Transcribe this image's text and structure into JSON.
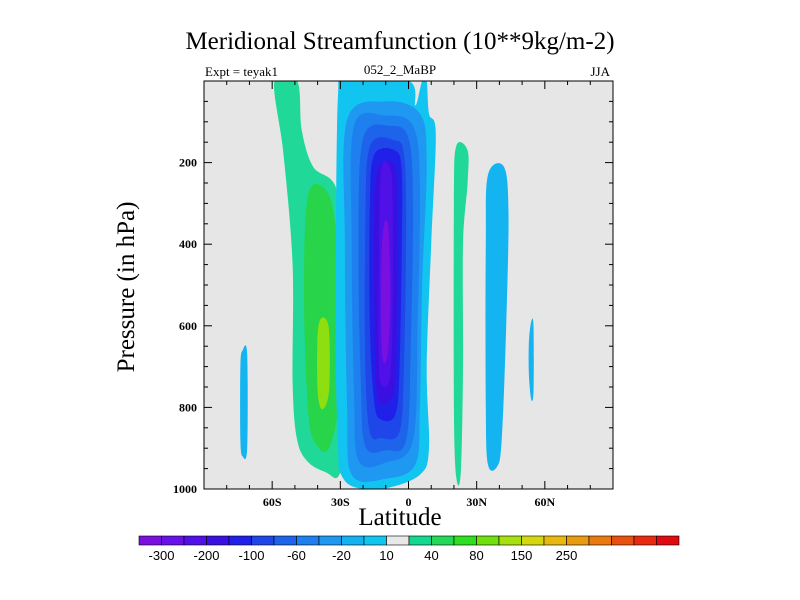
{
  "chart_data": {
    "type": "contour",
    "title": "Meridional Streamfunction (10**9kg/m-2)",
    "subtitle_left": "Expt = teyak1",
    "subtitle_center": "052_2_MaBP",
    "subtitle_right": "JJA",
    "xlabel": "Latitude",
    "ylabel": "Pressure (in hPa)",
    "xlim": [
      -90,
      90
    ],
    "ylim": [
      1000,
      0
    ],
    "x_ticks": [
      {
        "value": -60,
        "label": "60S"
      },
      {
        "value": -30,
        "label": "30S"
      },
      {
        "value": 0,
        "label": "0"
      },
      {
        "value": 30,
        "label": "30N"
      },
      {
        "value": 60,
        "label": "60N"
      }
    ],
    "y_ticks": [
      {
        "value": 200,
        "label": "200"
      },
      {
        "value": 400,
        "label": "400"
      },
      {
        "value": 600,
        "label": "600"
      },
      {
        "value": 800,
        "label": "800"
      },
      {
        "value": 1000,
        "label": "1000"
      }
    ],
    "colorbar": {
      "colors": [
        "#7a10e0",
        "#6a10e8",
        "#5010e8",
        "#3a10e0",
        "#2020e8",
        "#1e46e8",
        "#1e64ea",
        "#1e80ee",
        "#1e98f0",
        "#14b2f0",
        "#10c6f0",
        "#e8e8e8",
        "#14d890",
        "#24d858",
        "#2ede20",
        "#70e010",
        "#a6e010",
        "#d4d610",
        "#e8b810",
        "#e89a10",
        "#e87a10",
        "#e85010",
        "#e82a10",
        "#e00a10"
      ],
      "labels": [
        {
          "boundary": 1,
          "text": "-300"
        },
        {
          "boundary": 3,
          "text": "-200"
        },
        {
          "boundary": 5,
          "text": "-100"
        },
        {
          "boundary": 7,
          "text": "-60"
        },
        {
          "boundary": 9,
          "text": "-20"
        },
        {
          "boundary": 11,
          "text": "10"
        },
        {
          "boundary": 13,
          "text": "40"
        },
        {
          "boundary": 15,
          "text": "80"
        },
        {
          "boundary": 17,
          "text": "150"
        },
        {
          "boundary": 19,
          "text": "250"
        }
      ]
    },
    "background_color": "#e6e6e6",
    "contour_regions": [
      {
        "name": "nh-positive-outer",
        "level": "10",
        "color": "#20d898",
        "outline": [
          [
            -59,
            0
          ],
          [
            -49,
            0
          ],
          [
            -47,
            120
          ],
          [
            -42,
            210
          ],
          [
            -32,
            260
          ],
          [
            -28,
            420
          ],
          [
            -25,
            600
          ],
          [
            -25,
            700
          ],
          [
            -28,
            900
          ],
          [
            -31,
            970
          ],
          [
            -36,
            960
          ],
          [
            -44,
            935
          ],
          [
            -49,
            880
          ],
          [
            -51,
            740
          ],
          [
            -51,
            450
          ],
          [
            -55,
            180
          ]
        ]
      },
      {
        "name": "nh-positive-mid",
        "level": "40",
        "color": "#28d44a",
        "outline": [
          [
            -44,
            275
          ],
          [
            -35,
            280
          ],
          [
            -31,
            420
          ],
          [
            -30,
            620
          ],
          [
            -31,
            800
          ],
          [
            -35,
            900
          ],
          [
            -40,
            895
          ],
          [
            -44,
            820
          ],
          [
            -46,
            520
          ]
        ]
      },
      {
        "name": "nh-positive-core",
        "level": "80",
        "color": "#8ede10",
        "outline": [
          [
            -38,
            580
          ],
          [
            -35,
            610
          ],
          [
            -35,
            760
          ],
          [
            -38,
            805
          ],
          [
            -40,
            760
          ],
          [
            -40,
            620
          ]
        ]
      },
      {
        "name": "southern-weak-cell",
        "level": "-20",
        "color": "#14b4f0",
        "outline": [
          [
            -73,
            660
          ],
          [
            -71,
            670
          ],
          [
            -71,
            900
          ],
          [
            -73,
            920
          ],
          [
            -74,
            880
          ],
          [
            -74,
            700
          ]
        ]
      },
      {
        "name": "hadley-outer",
        "level": "-20",
        "color": "#12c4f0",
        "outline": [
          [
            -31,
            30
          ],
          [
            -28,
            0
          ],
          [
            0,
            0
          ],
          [
            3,
            60
          ],
          [
            6,
            0
          ],
          [
            8,
            0
          ],
          [
            9,
            80
          ],
          [
            12,
            130
          ],
          [
            10,
            400
          ],
          [
            8,
            700
          ],
          [
            9,
            900
          ],
          [
            5,
            965
          ],
          [
            -10,
            998
          ],
          [
            -24,
            995
          ],
          [
            -30,
            960
          ],
          [
            -31,
            900
          ],
          [
            -32,
            700
          ],
          [
            -32,
            400
          ]
        ]
      },
      {
        "name": "hadley-l1",
        "level": "-40",
        "color": "#1e98f0",
        "outline": [
          [
            -27,
            95
          ],
          [
            -10,
            50
          ],
          [
            5,
            80
          ],
          [
            8,
            200
          ],
          [
            6,
            500
          ],
          [
            5,
            800
          ],
          [
            3,
            940
          ],
          [
            -10,
            975
          ],
          [
            -25,
            965
          ],
          [
            -27,
            800
          ],
          [
            -28,
            400
          ]
        ]
      },
      {
        "name": "hadley-l2",
        "level": "-60",
        "color": "#1e80ee",
        "outline": [
          [
            -24,
            110
          ],
          [
            -10,
            85
          ],
          [
            2,
            110
          ],
          [
            5,
            250
          ],
          [
            4,
            600
          ],
          [
            2,
            880
          ],
          [
            -10,
            935
          ],
          [
            -22,
            930
          ],
          [
            -24,
            760
          ],
          [
            -25,
            400
          ]
        ]
      },
      {
        "name": "hadley-l3",
        "level": "-80",
        "color": "#1e64ea",
        "outline": [
          [
            -20,
            140
          ],
          [
            -8,
            110
          ],
          [
            0,
            140
          ],
          [
            2,
            300
          ],
          [
            1,
            650
          ],
          [
            -1,
            880
          ],
          [
            -10,
            905
          ],
          [
            -19,
            895
          ],
          [
            -21,
            740
          ],
          [
            -22,
            400
          ]
        ]
      },
      {
        "name": "hadley-l4",
        "level": "-100",
        "color": "#1e46e8",
        "outline": [
          [
            -17,
            160
          ],
          [
            -6,
            145
          ],
          [
            -2,
            180
          ],
          [
            -1,
            350
          ],
          [
            -2,
            700
          ],
          [
            -4,
            860
          ],
          [
            -12,
            875
          ],
          [
            -17,
            860
          ],
          [
            -19,
            700
          ],
          [
            -19,
            360
          ]
        ]
      },
      {
        "name": "hadley-l5",
        "level": "-150",
        "color": "#2020e8",
        "outline": [
          [
            -15,
            180
          ],
          [
            -6,
            170
          ],
          [
            -3,
            220
          ],
          [
            -3,
            420
          ],
          [
            -4,
            720
          ],
          [
            -6,
            820
          ],
          [
            -12,
            830
          ],
          [
            -15,
            790
          ],
          [
            -17,
            600
          ],
          [
            -17,
            300
          ]
        ]
      },
      {
        "name": "hadley-l6",
        "level": "-200",
        "color": "#3a10e0",
        "outline": [
          [
            -13,
            210
          ],
          [
            -7,
            200
          ],
          [
            -5,
            260
          ],
          [
            -5,
            500
          ],
          [
            -6,
            740
          ],
          [
            -10,
            790
          ],
          [
            -14,
            760
          ],
          [
            -15,
            560
          ],
          [
            -15,
            300
          ]
        ]
      },
      {
        "name": "hadley-l7",
        "level": "-250",
        "color": "#5010e8",
        "outline": [
          [
            -12,
            220
          ],
          [
            -8,
            215
          ],
          [
            -7,
            300
          ],
          [
            -7,
            560
          ],
          [
            -8,
            720
          ],
          [
            -11,
            750
          ],
          [
            -13,
            700
          ],
          [
            -13,
            460
          ]
        ]
      },
      {
        "name": "hadley-core",
        "level": "-300",
        "color": "#7a10e0",
        "outline": [
          [
            -11,
            360
          ],
          [
            -9,
            355
          ],
          [
            -8,
            520
          ],
          [
            -9,
            660
          ],
          [
            -11,
            690
          ],
          [
            -12,
            620
          ],
          [
            -12,
            460
          ]
        ]
      },
      {
        "name": "subtropical-positive",
        "level": "10",
        "color": "#20d898",
        "outline": [
          [
            21,
            160
          ],
          [
            26,
            170
          ],
          [
            26,
            250
          ],
          [
            24,
            400
          ],
          [
            24,
            700
          ],
          [
            23,
            960
          ],
          [
            21,
            970
          ],
          [
            20,
            800
          ],
          [
            20,
            300
          ]
        ]
      },
      {
        "name": "ferrel-negative",
        "level": "-20",
        "color": "#14b4f0",
        "outline": [
          [
            35,
            230
          ],
          [
            42,
            210
          ],
          [
            44,
            320
          ],
          [
            43,
            600
          ],
          [
            41,
            880
          ],
          [
            39,
            945
          ],
          [
            35,
            940
          ],
          [
            34,
            800
          ],
          [
            34,
            400
          ]
        ]
      },
      {
        "name": "polar-weak-cell",
        "level": "-20",
        "color": "#14b4f0",
        "outline": [
          [
            54,
            590
          ],
          [
            55,
            600
          ],
          [
            55,
            760
          ],
          [
            54,
            780
          ],
          [
            53,
            720
          ],
          [
            53,
            640
          ]
        ]
      }
    ]
  }
}
